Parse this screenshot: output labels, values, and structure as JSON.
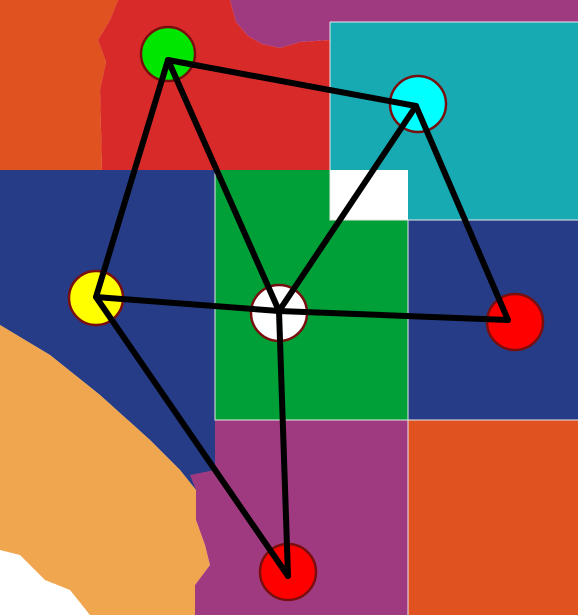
{
  "regions": [
    {
      "id": "region-orange-northwest",
      "color": "#e0521f"
    },
    {
      "id": "region-purple-north",
      "color": "#a03a80"
    },
    {
      "id": "region-red-north",
      "color": "#d92a2a"
    },
    {
      "id": "region-teal-northeast",
      "color": "#17aab3"
    },
    {
      "id": "region-blue-west",
      "color": "#263c86"
    },
    {
      "id": "region-green-center",
      "color": "#00a038"
    },
    {
      "id": "region-blue-east",
      "color": "#263c86"
    },
    {
      "id": "region-tan-southwest",
      "color": "#f0a64e"
    },
    {
      "id": "region-purple-south",
      "color": "#a03a80"
    },
    {
      "id": "region-orange-southeast",
      "color": "#e0521f"
    }
  ],
  "nodes": [
    {
      "id": "node-green",
      "color": "#00e600"
    },
    {
      "id": "node-cyan",
      "color": "#00ffff"
    },
    {
      "id": "node-yellow",
      "color": "#ffff00"
    },
    {
      "id": "node-white",
      "color": "#ffffff"
    },
    {
      "id": "node-red-east",
      "color": "#ff0000"
    },
    {
      "id": "node-red-south",
      "color": "#ff0000"
    }
  ],
  "edges": [
    [
      "node-green",
      "node-cyan"
    ],
    [
      "node-green",
      "node-yellow"
    ],
    [
      "node-green",
      "node-white"
    ],
    [
      "node-cyan",
      "node-white"
    ],
    [
      "node-cyan",
      "node-red-east"
    ],
    [
      "node-yellow",
      "node-white"
    ],
    [
      "node-white",
      "node-red-east"
    ],
    [
      "node-yellow",
      "node-red-south"
    ],
    [
      "node-white",
      "node-red-south"
    ]
  ]
}
